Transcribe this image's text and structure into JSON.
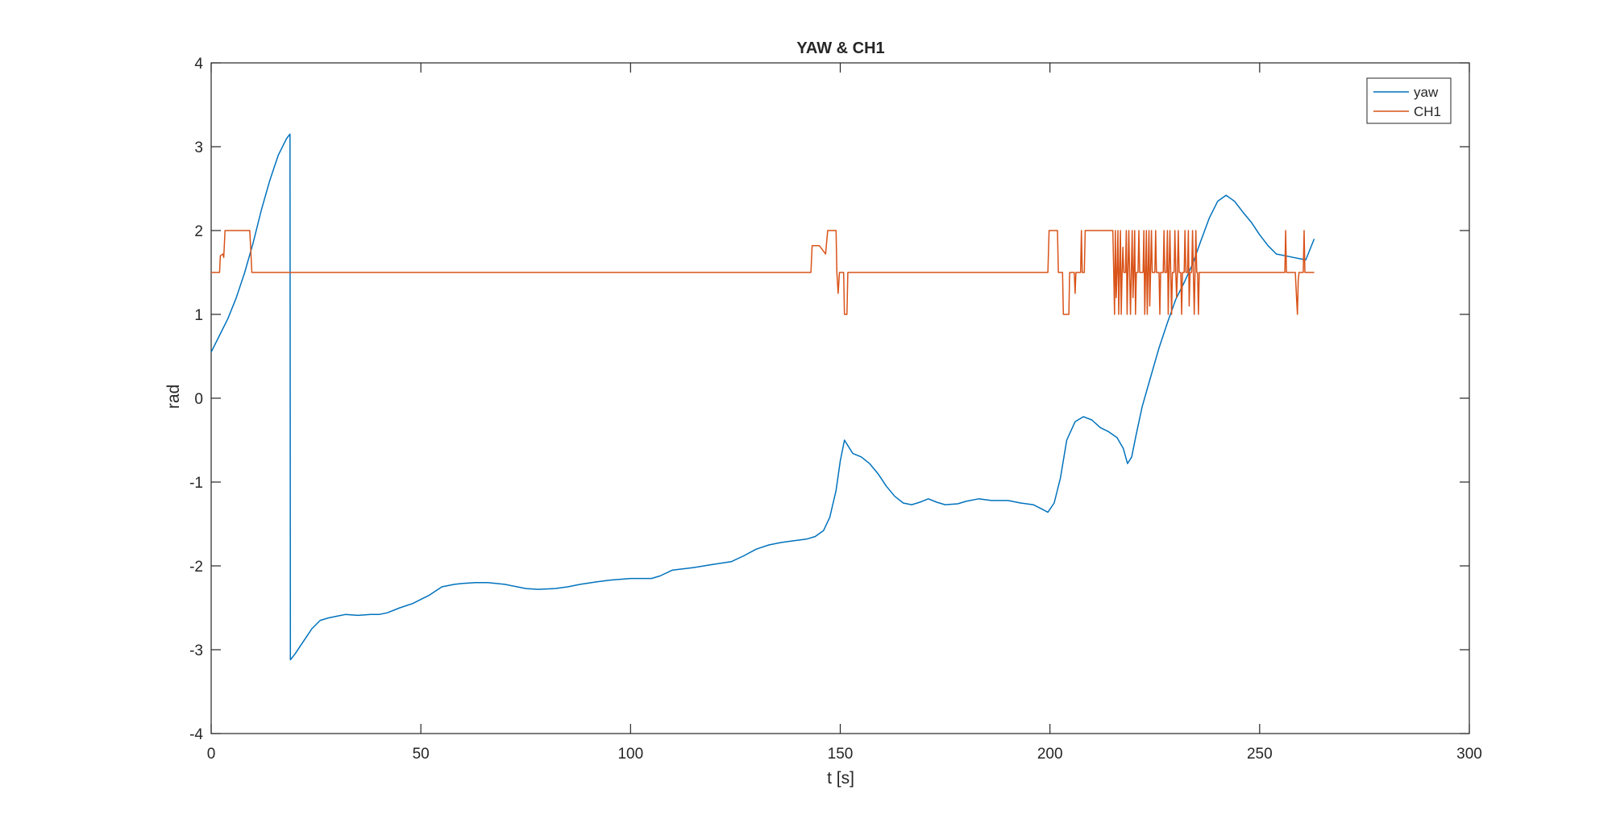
{
  "chart_data": {
    "type": "line",
    "title": "YAW & CH1",
    "xlabel": "t [s]",
    "ylabel": "rad",
    "xlim": [
      0,
      300
    ],
    "ylim": [
      -4,
      4
    ],
    "xticks": [
      0,
      50,
      100,
      150,
      200,
      250,
      300
    ],
    "yticks": [
      -4,
      -3,
      -2,
      -1,
      0,
      1,
      2,
      3,
      4
    ],
    "grid": false,
    "legend_position": "top-right",
    "series": [
      {
        "name": "yaw",
        "color": "#0072BD",
        "points": [
          [
            0,
            0.55
          ],
          [
            2,
            0.75
          ],
          [
            4,
            0.95
          ],
          [
            6,
            1.2
          ],
          [
            8,
            1.5
          ],
          [
            10,
            1.85
          ],
          [
            12,
            2.25
          ],
          [
            14,
            2.6
          ],
          [
            16,
            2.9
          ],
          [
            18,
            3.1
          ],
          [
            18.8,
            3.15
          ],
          [
            18.9,
            -3.12
          ],
          [
            20,
            -3.05
          ],
          [
            22,
            -2.9
          ],
          [
            24,
            -2.75
          ],
          [
            26,
            -2.65
          ],
          [
            28,
            -2.62
          ],
          [
            30,
            -2.6
          ],
          [
            32,
            -2.58
          ],
          [
            35,
            -2.59
          ],
          [
            38,
            -2.58
          ],
          [
            40,
            -2.58
          ],
          [
            42,
            -2.56
          ],
          [
            45,
            -2.5
          ],
          [
            48,
            -2.45
          ],
          [
            50,
            -2.4
          ],
          [
            52,
            -2.35
          ],
          [
            55,
            -2.25
          ],
          [
            58,
            -2.22
          ],
          [
            60,
            -2.21
          ],
          [
            63,
            -2.2
          ],
          [
            66,
            -2.2
          ],
          [
            70,
            -2.22
          ],
          [
            73,
            -2.25
          ],
          [
            75,
            -2.27
          ],
          [
            78,
            -2.28
          ],
          [
            82,
            -2.27
          ],
          [
            85,
            -2.25
          ],
          [
            88,
            -2.22
          ],
          [
            92,
            -2.19
          ],
          [
            95,
            -2.17
          ],
          [
            100,
            -2.15
          ],
          [
            105,
            -2.15
          ],
          [
            107,
            -2.12
          ],
          [
            110,
            -2.05
          ],
          [
            115,
            -2.02
          ],
          [
            120,
            -1.98
          ],
          [
            124,
            -1.95
          ],
          [
            127,
            -1.88
          ],
          [
            130,
            -1.8
          ],
          [
            133,
            -1.75
          ],
          [
            136,
            -1.72
          ],
          [
            139,
            -1.7
          ],
          [
            142,
            -1.68
          ],
          [
            144,
            -1.65
          ],
          [
            146,
            -1.58
          ],
          [
            147.5,
            -1.42
          ],
          [
            149,
            -1.1
          ],
          [
            150,
            -0.75
          ],
          [
            151,
            -0.5
          ],
          [
            152,
            -0.58
          ],
          [
            153,
            -0.66
          ],
          [
            155,
            -0.7
          ],
          [
            157,
            -0.78
          ],
          [
            159,
            -0.9
          ],
          [
            161,
            -1.05
          ],
          [
            163,
            -1.17
          ],
          [
            165,
            -1.25
          ],
          [
            167,
            -1.27
          ],
          [
            169,
            -1.24
          ],
          [
            171,
            -1.2
          ],
          [
            173,
            -1.24
          ],
          [
            175,
            -1.27
          ],
          [
            178,
            -1.26
          ],
          [
            180,
            -1.23
          ],
          [
            183,
            -1.2
          ],
          [
            186,
            -1.22
          ],
          [
            190,
            -1.22
          ],
          [
            193,
            -1.25
          ],
          [
            196,
            -1.27
          ],
          [
            198,
            -1.32
          ],
          [
            199.5,
            -1.36
          ],
          [
            201,
            -1.25
          ],
          [
            202.5,
            -0.95
          ],
          [
            204,
            -0.5
          ],
          [
            206,
            -0.28
          ],
          [
            208,
            -0.22
          ],
          [
            210,
            -0.26
          ],
          [
            212,
            -0.35
          ],
          [
            214,
            -0.4
          ],
          [
            216,
            -0.47
          ],
          [
            217.5,
            -0.6
          ],
          [
            218.5,
            -0.78
          ],
          [
            219.5,
            -0.7
          ],
          [
            220.5,
            -0.45
          ],
          [
            222,
            -0.1
          ],
          [
            224,
            0.25
          ],
          [
            226,
            0.6
          ],
          [
            228,
            0.9
          ],
          [
            230,
            1.18
          ],
          [
            232,
            1.38
          ],
          [
            234,
            1.6
          ],
          [
            236,
            1.88
          ],
          [
            238,
            2.15
          ],
          [
            240,
            2.35
          ],
          [
            242,
            2.42
          ],
          [
            244,
            2.35
          ],
          [
            246,
            2.22
          ],
          [
            248,
            2.1
          ],
          [
            250,
            1.95
          ],
          [
            252,
            1.82
          ],
          [
            254,
            1.72
          ],
          [
            256,
            1.7
          ],
          [
            258,
            1.68
          ],
          [
            260,
            1.66
          ],
          [
            261,
            1.65
          ],
          [
            263,
            1.9
          ]
        ]
      },
      {
        "name": "CH1",
        "color": "#D95319",
        "points": [
          [
            0,
            1.5
          ],
          [
            2,
            1.5
          ],
          [
            2.2,
            1.7
          ],
          [
            2.8,
            1.72
          ],
          [
            3.0,
            1.68
          ],
          [
            3.3,
            2.0
          ],
          [
            9.2,
            2.0
          ],
          [
            9.7,
            1.5
          ],
          [
            143,
            1.5
          ],
          [
            143.3,
            1.82
          ],
          [
            145,
            1.82
          ],
          [
            146.5,
            1.72
          ],
          [
            147,
            2.0
          ],
          [
            149,
            2.0
          ],
          [
            149.2,
            1.5
          ],
          [
            149.5,
            1.25
          ],
          [
            149.8,
            1.5
          ],
          [
            150.8,
            1.5
          ],
          [
            151.0,
            1.0
          ],
          [
            151.6,
            1.0
          ],
          [
            151.8,
            1.5
          ],
          [
            199.5,
            1.5
          ],
          [
            199.8,
            2.0
          ],
          [
            201.8,
            2.0
          ],
          [
            202.0,
            1.5
          ],
          [
            203.0,
            1.5
          ],
          [
            203.2,
            1.0
          ],
          [
            204.5,
            1.0
          ],
          [
            204.7,
            1.5
          ],
          [
            205.8,
            1.5
          ],
          [
            206.0,
            1.25
          ],
          [
            206.2,
            1.5
          ],
          [
            207.3,
            1.5
          ],
          [
            207.5,
            2.0
          ],
          [
            207.7,
            1.5
          ],
          [
            208.2,
            1.5
          ],
          [
            208.4,
            2.0
          ],
          [
            215.0,
            2.0
          ],
          [
            215.2,
            1.5
          ],
          [
            215.4,
            1.0
          ],
          [
            215.6,
            2.0
          ],
          [
            215.8,
            1.2
          ],
          [
            216.0,
            1.5
          ],
          [
            216.2,
            2.0
          ],
          [
            216.4,
            1.0
          ],
          [
            216.6,
            1.5
          ],
          [
            216.8,
            2.0
          ],
          [
            217.0,
            1.0
          ],
          [
            217.2,
            1.5
          ],
          [
            217.4,
            1.8
          ],
          [
            217.6,
            1.5
          ],
          [
            218.0,
            1.5
          ],
          [
            218.2,
            2.0
          ],
          [
            218.4,
            1.0
          ],
          [
            218.6,
            1.5
          ],
          [
            218.8,
            2.0
          ],
          [
            219.0,
            1.5
          ],
          [
            219.2,
            1.0
          ],
          [
            219.4,
            1.5
          ],
          [
            219.6,
            2.0
          ],
          [
            219.8,
            1.2
          ],
          [
            220.0,
            1.5
          ],
          [
            220.2,
            2.0
          ],
          [
            220.4,
            1.0
          ],
          [
            220.6,
            1.5
          ],
          [
            221.0,
            1.5
          ],
          [
            221.2,
            2.0
          ],
          [
            221.4,
            1.5
          ],
          [
            222.2,
            1.5
          ],
          [
            222.4,
            2.0
          ],
          [
            222.6,
            1.0
          ],
          [
            222.8,
            1.5
          ],
          [
            223.0,
            2.0
          ],
          [
            223.2,
            1.0
          ],
          [
            223.4,
            1.5
          ],
          [
            223.6,
            2.0
          ],
          [
            223.8,
            1.1
          ],
          [
            224.0,
            1.5
          ],
          [
            224.2,
            2.0
          ],
          [
            224.4,
            1.5
          ],
          [
            225.0,
            1.5
          ],
          [
            225.2,
            2.0
          ],
          [
            225.4,
            1.5
          ],
          [
            226.0,
            1.5
          ],
          [
            226.2,
            1.0
          ],
          [
            226.4,
            1.5
          ],
          [
            227.0,
            1.5
          ],
          [
            227.2,
            2.0
          ],
          [
            227.4,
            1.5
          ],
          [
            227.8,
            1.5
          ],
          [
            228.0,
            2.0
          ],
          [
            228.2,
            1.0
          ],
          [
            228.4,
            1.5
          ],
          [
            228.6,
            2.0
          ],
          [
            228.8,
            1.5
          ],
          [
            229.0,
            1.0
          ],
          [
            229.2,
            1.5
          ],
          [
            229.6,
            1.5
          ],
          [
            229.8,
            2.0
          ],
          [
            230.0,
            1.5
          ],
          [
            230.2,
            1.2
          ],
          [
            230.4,
            1.5
          ],
          [
            230.6,
            2.0
          ],
          [
            230.8,
            1.5
          ],
          [
            231.2,
            1.5
          ],
          [
            231.4,
            1.0
          ],
          [
            231.6,
            1.5
          ],
          [
            232.0,
            1.5
          ],
          [
            232.2,
            2.0
          ],
          [
            232.4,
            1.5
          ],
          [
            232.8,
            1.5
          ],
          [
            233.0,
            2.0
          ],
          [
            233.2,
            1.1
          ],
          [
            233.4,
            1.5
          ],
          [
            233.8,
            1.5
          ],
          [
            234.0,
            2.0
          ],
          [
            234.2,
            1.5
          ],
          [
            234.4,
            1.0
          ],
          [
            234.6,
            1.5
          ],
          [
            234.8,
            2.0
          ],
          [
            235.0,
            1.5
          ],
          [
            235.2,
            1.5
          ],
          [
            235.4,
            1.0
          ],
          [
            235.6,
            1.5
          ],
          [
            256.0,
            1.5
          ],
          [
            256.2,
            2.0
          ],
          [
            256.4,
            1.5
          ],
          [
            258.5,
            1.5
          ],
          [
            258.8,
            1.2
          ],
          [
            259.0,
            1.0
          ],
          [
            259.2,
            1.4
          ],
          [
            259.4,
            1.5
          ],
          [
            260.4,
            1.5
          ],
          [
            260.6,
            2.0
          ],
          [
            260.8,
            1.5
          ],
          [
            263,
            1.5
          ]
        ]
      }
    ]
  }
}
